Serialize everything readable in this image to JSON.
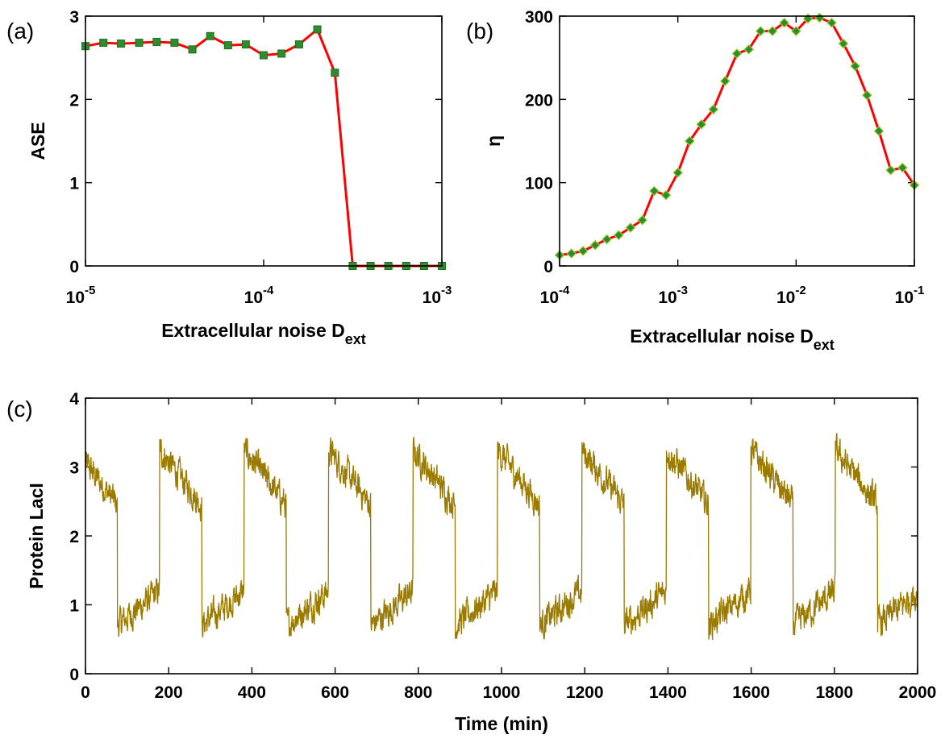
{
  "panels": [
    {
      "id": "a",
      "label": "(a)",
      "type": "line",
      "x_scale": "log",
      "xlim": [
        1e-05,
        0.001
      ],
      "ylim": [
        0,
        3
      ],
      "xticks": [
        1e-05,
        0.0001,
        0.001
      ],
      "xtick_bases": [
        "10",
        "10",
        "10"
      ],
      "xtick_exponents": [
        "-5",
        "-4",
        "-3"
      ],
      "yticks": [
        0,
        1,
        2,
        3
      ],
      "ytick_labels": [
        "0",
        "1",
        "2",
        "3"
      ],
      "xlabel_main": "Extracellular noise D",
      "xlabel_sub": "ext",
      "ylabel": "ASE",
      "line_color": "#ff0000",
      "marker_color": "#2e8b2e",
      "marker_shape": "square",
      "x": [
        1e-05,
        1.26e-05,
        1.58e-05,
        2e-05,
        2.51e-05,
        3.16e-05,
        3.98e-05,
        5.01e-05,
        6.31e-05,
        7.94e-05,
        0.0001,
        0.000126,
        0.000158,
        0.0002,
        0.000251,
        0.000316,
        0.000398,
        0.000501,
        0.000631,
        0.000794,
        0.001
      ],
      "y": [
        2.64,
        2.68,
        2.67,
        2.68,
        2.69,
        2.68,
        2.6,
        2.76,
        2.65,
        2.66,
        2.53,
        2.55,
        2.66,
        2.84,
        2.32,
        0,
        0,
        0,
        0,
        0,
        0
      ]
    },
    {
      "id": "b",
      "label": "(b)",
      "type": "line",
      "x_scale": "log",
      "xlim": [
        0.0001,
        0.1
      ],
      "ylim": [
        0,
        300
      ],
      "xticks": [
        0.0001,
        0.001,
        0.01,
        0.1
      ],
      "xtick_bases": [
        "10",
        "10",
        "10",
        "10"
      ],
      "xtick_exponents": [
        "-4",
        "-3",
        "-2",
        "-1"
      ],
      "yticks": [
        0,
        100,
        200,
        300
      ],
      "ytick_labels": [
        "0",
        "100",
        "200",
        "300"
      ],
      "xlabel_main": "Extracellular noise D",
      "xlabel_sub": "ext",
      "ylabel": "η",
      "line_color": "#ff0000",
      "marker_color": "#2e8b2e",
      "marker_shape": "diamond",
      "x": [
        0.0001,
        0.000126,
        0.000158,
        0.0002,
        0.000251,
        0.000316,
        0.000398,
        0.000501,
        0.000631,
        0.000794,
        0.001,
        0.00126,
        0.00158,
        0.002,
        0.00251,
        0.00316,
        0.00398,
        0.00501,
        0.00631,
        0.00794,
        0.01,
        0.0126,
        0.0158,
        0.02,
        0.0251,
        0.0316,
        0.0398,
        0.0501,
        0.0631,
        0.0794,
        0.1
      ],
      "y": [
        13,
        15,
        18,
        25,
        32,
        37,
        46,
        55,
        90,
        85,
        112,
        150,
        170,
        188,
        222,
        255,
        260,
        282,
        282,
        292,
        282,
        297,
        298,
        292,
        267,
        240,
        205,
        162,
        115,
        118,
        97
      ]
    },
    {
      "id": "c",
      "label": "(c)",
      "type": "line",
      "x_scale": "linear",
      "xlim": [
        0,
        2000
      ],
      "ylim": [
        0,
        4
      ],
      "xticks": [
        0,
        200,
        400,
        600,
        800,
        1000,
        1200,
        1400,
        1600,
        1800,
        2000
      ],
      "xtick_labels": [
        "0",
        "200",
        "400",
        "600",
        "800",
        "1000",
        "1200",
        "1400",
        "1600",
        "1800",
        "2000"
      ],
      "yticks": [
        0,
        1,
        2,
        3,
        4
      ],
      "ytick_labels": [
        "0",
        "1",
        "2",
        "3",
        "4"
      ],
      "xlabel": "Time (min)",
      "ylabel": "Protein LacI",
      "line_color": "#9a7b00",
      "period": 203,
      "high_level_start": 3.25,
      "high_level_end": 2.45,
      "low_level_start": 0.7,
      "low_level_end": 1.2,
      "noise_amplitude": 0.35
    }
  ]
}
